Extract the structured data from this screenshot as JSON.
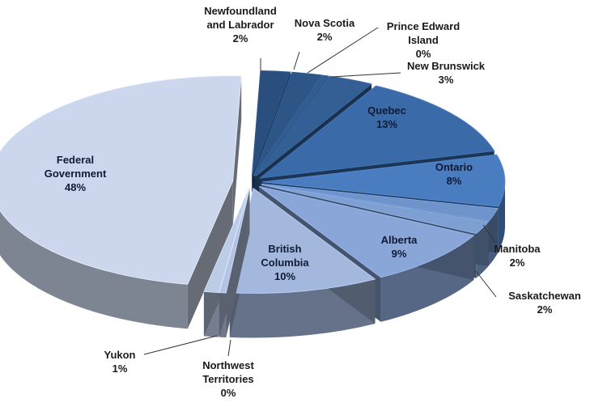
{
  "chart_data": {
    "type": "pie",
    "style": "3D exploded pie",
    "slices": [
      {
        "label": "Newfoundland and Labrador",
        "lines": [
          "Newfoundland",
          "and Labrador"
        ],
        "pct": "2%",
        "value": 2,
        "color": "#2a4f7f"
      },
      {
        "label": "Nova Scotia",
        "lines": [
          "Nova Scotia"
        ],
        "pct": "2%",
        "value": 2,
        "color": "#2d5686"
      },
      {
        "label": "Prince Edward Island",
        "lines": [
          "Prince Edward",
          "Island"
        ],
        "pct": "0%",
        "value": 0,
        "color": "#305c8f"
      },
      {
        "label": "New Brunswick",
        "lines": [
          "New Brunswick"
        ],
        "pct": "3%",
        "value": 3,
        "color": "#335f95"
      },
      {
        "label": "Quebec",
        "lines": [
          "Quebec"
        ],
        "pct": "13%",
        "value": 13,
        "color": "#3a6aa8"
      },
      {
        "label": "Ontario",
        "lines": [
          "Ontario"
        ],
        "pct": "8%",
        "value": 8,
        "color": "#4a7dc0"
      },
      {
        "label": "Manitoba",
        "lines": [
          "Manitoba"
        ],
        "pct": "2%",
        "value": 2,
        "color": "#6f94cb"
      },
      {
        "label": "Saskatchewan",
        "lines": [
          "Saskatchewan"
        ],
        "pct": "2%",
        "value": 2,
        "color": "#7e9fd1"
      },
      {
        "label": "Alberta",
        "lines": [
          "Alberta"
        ],
        "pct": "9%",
        "value": 9,
        "color": "#8aa6d8"
      },
      {
        "label": "British Columbia",
        "lines": [
          "British",
          "Columbia"
        ],
        "pct": "10%",
        "value": 10,
        "color": "#a4b8de"
      },
      {
        "label": "Northwest Territories",
        "lines": [
          "Northwest",
          "Territories"
        ],
        "pct": "0%",
        "value": 0,
        "color": "#b4c3e2"
      },
      {
        "label": "Yukon",
        "lines": [
          "Yukon"
        ],
        "pct": "1%",
        "value": 1,
        "color": "#bccbe6"
      },
      {
        "label": "Federal Government",
        "lines": [
          "Federal",
          "Government"
        ],
        "pct": "48%",
        "value": 48,
        "color": "#ccd6ec"
      }
    ]
  }
}
